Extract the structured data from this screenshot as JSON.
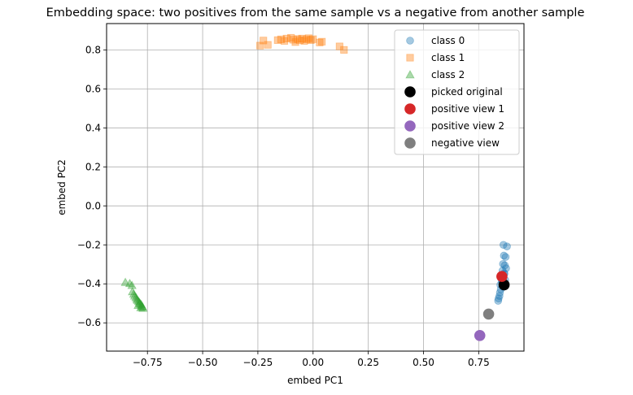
{
  "chart_data": {
    "type": "scatter",
    "title": "Embedding space: two positives from the same sample vs a negative from another sample",
    "xlabel": "embed PC1",
    "ylabel": "embed PC2",
    "xlim": [
      -0.935,
      0.955
    ],
    "ylim": [
      -0.745,
      0.935
    ],
    "xticks": [
      -0.75,
      -0.5,
      -0.25,
      0.0,
      0.25,
      0.5,
      0.75
    ],
    "xtick_labels": [
      "−0.75",
      "−0.50",
      "−0.25",
      "0.00",
      "0.25",
      "0.50",
      "0.75"
    ],
    "yticks": [
      -0.6,
      -0.4,
      -0.2,
      0.0,
      0.2,
      0.4,
      0.6,
      0.8
    ],
    "ytick_labels": [
      "−0.6",
      "−0.4",
      "−0.2",
      "0.0",
      "0.2",
      "0.4",
      "0.6",
      "0.8"
    ],
    "grid": true,
    "legend_position": "top-right",
    "series": [
      {
        "name": "class 0",
        "marker": "circle",
        "color": "#1f77b4",
        "alpha": 0.4,
        "points": [
          [
            0.862,
            -0.2
          ],
          [
            0.878,
            -0.208
          ],
          [
            0.864,
            -0.255
          ],
          [
            0.872,
            -0.262
          ],
          [
            0.86,
            -0.298
          ],
          [
            0.868,
            -0.305
          ],
          [
            0.874,
            -0.32
          ],
          [
            0.858,
            -0.332
          ],
          [
            0.866,
            -0.345
          ],
          [
            0.852,
            -0.36
          ],
          [
            0.86,
            -0.37
          ],
          [
            0.87,
            -0.38
          ],
          [
            0.856,
            -0.392
          ],
          [
            0.848,
            -0.405
          ],
          [
            0.862,
            -0.415
          ],
          [
            0.85,
            -0.428
          ],
          [
            0.846,
            -0.445
          ],
          [
            0.844,
            -0.462
          ],
          [
            0.84,
            -0.475
          ],
          [
            0.838,
            -0.487
          ],
          [
            0.866,
            -0.35
          ],
          [
            0.854,
            -0.382
          ]
        ]
      },
      {
        "name": "class 1",
        "marker": "square",
        "color": "#ff7f0e",
        "alpha": 0.4,
        "points": [
          [
            -0.24,
            0.822
          ],
          [
            -0.225,
            0.848
          ],
          [
            -0.205,
            0.826
          ],
          [
            -0.16,
            0.85
          ],
          [
            -0.145,
            0.854
          ],
          [
            -0.13,
            0.846
          ],
          [
            -0.12,
            0.858
          ],
          [
            -0.1,
            0.862
          ],
          [
            -0.09,
            0.852
          ],
          [
            -0.08,
            0.84
          ],
          [
            -0.07,
            0.856
          ],
          [
            -0.06,
            0.85
          ],
          [
            -0.05,
            0.858
          ],
          [
            -0.04,
            0.846
          ],
          [
            -0.03,
            0.854
          ],
          [
            -0.02,
            0.86
          ],
          [
            -0.01,
            0.85
          ],
          [
            0.0,
            0.855
          ],
          [
            0.03,
            0.838
          ],
          [
            0.04,
            0.842
          ],
          [
            0.12,
            0.818
          ],
          [
            0.14,
            0.8
          ]
        ]
      },
      {
        "name": "class 2",
        "marker": "triangle",
        "color": "#2ca02c",
        "alpha": 0.4,
        "points": [
          [
            -0.85,
            -0.392
          ],
          [
            -0.83,
            -0.398
          ],
          [
            -0.82,
            -0.408
          ],
          [
            -0.818,
            -0.44
          ],
          [
            -0.812,
            -0.452
          ],
          [
            -0.808,
            -0.462
          ],
          [
            -0.802,
            -0.47
          ],
          [
            -0.798,
            -0.478
          ],
          [
            -0.795,
            -0.484
          ],
          [
            -0.79,
            -0.49
          ],
          [
            -0.786,
            -0.496
          ],
          [
            -0.783,
            -0.502
          ],
          [
            -0.778,
            -0.506
          ],
          [
            -0.792,
            -0.51
          ],
          [
            -0.776,
            -0.514
          ],
          [
            -0.772,
            -0.518
          ],
          [
            -0.78,
            -0.522
          ],
          [
            -0.77,
            -0.525
          ]
        ]
      },
      {
        "name": "picked original",
        "marker": "circle-large",
        "color": "#000000",
        "alpha": 1,
        "points": [
          [
            0.865,
            -0.405
          ]
        ]
      },
      {
        "name": "positive view 1",
        "marker": "circle-large",
        "color": "#d62728",
        "alpha": 1,
        "points": [
          [
            0.855,
            -0.362
          ]
        ]
      },
      {
        "name": "positive view 2",
        "marker": "circle-large",
        "color": "#9467bd",
        "alpha": 1,
        "points": [
          [
            0.755,
            -0.665
          ]
        ]
      },
      {
        "name": "negative view",
        "marker": "circle-large",
        "color": "#7f7f7f",
        "alpha": 1,
        "points": [
          [
            0.795,
            -0.555
          ]
        ]
      }
    ]
  }
}
